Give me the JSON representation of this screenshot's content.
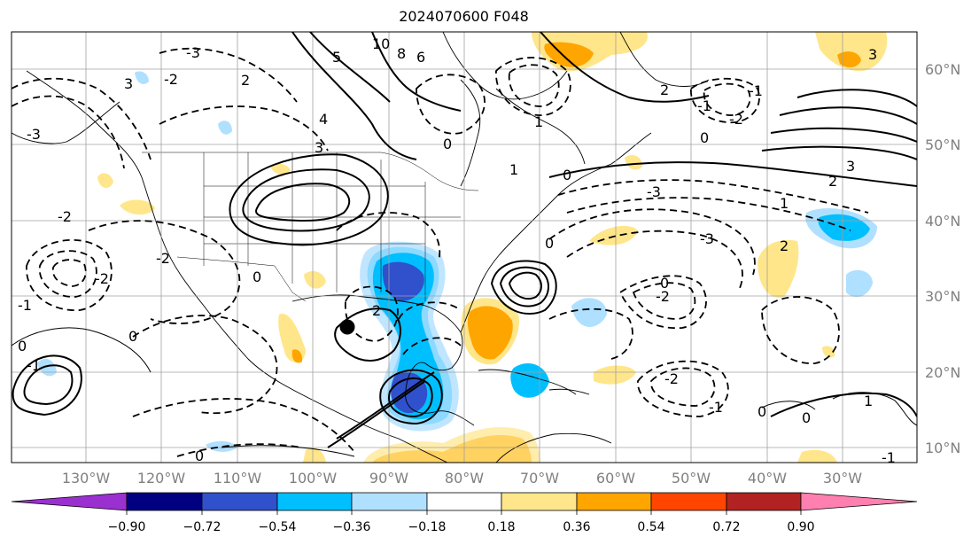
{
  "title": "2024070600 F048",
  "longitude_labels": [
    "130°W",
    "120°W",
    "110°W",
    "100°W",
    "90°W",
    "80°W",
    "70°W",
    "60°W",
    "50°W",
    "40°W",
    "30°W"
  ],
  "latitude_labels": [
    "60°N",
    "50°N",
    "40°N",
    "30°N",
    "20°N",
    "10°N"
  ],
  "colorbar": {
    "tick_labels": [
      "−0.90",
      "−0.72",
      "−0.54",
      "−0.36",
      "−0.18",
      "0.18",
      "0.36",
      "0.54",
      "0.72",
      "0.90"
    ],
    "colors": [
      "#9b30d0",
      "#000080",
      "#3050cc",
      "#00bfff",
      "#b0e0ff",
      "#ffffff",
      "#ffe68a",
      "#ffa500",
      "#ff4500",
      "#b22222",
      "#ff80b0"
    ]
  },
  "contour_labels": [
    "10",
    "8",
    "6",
    "5",
    "4",
    "3",
    "2",
    "2",
    "1",
    "1",
    "0",
    "0",
    "0",
    "-1",
    "-1",
    "-2",
    "-2",
    "-2",
    "-2",
    "-3",
    "-3",
    "-3",
    "2",
    "-2",
    "3",
    "3",
    "2",
    "1",
    "0",
    "0",
    "-3",
    "-2",
    "0",
    "-1",
    "0",
    "0",
    "-2",
    "-1",
    "0",
    "1",
    "-1",
    "0",
    "0",
    "2",
    "3",
    "-1"
  ],
  "marker": "black-dot"
}
